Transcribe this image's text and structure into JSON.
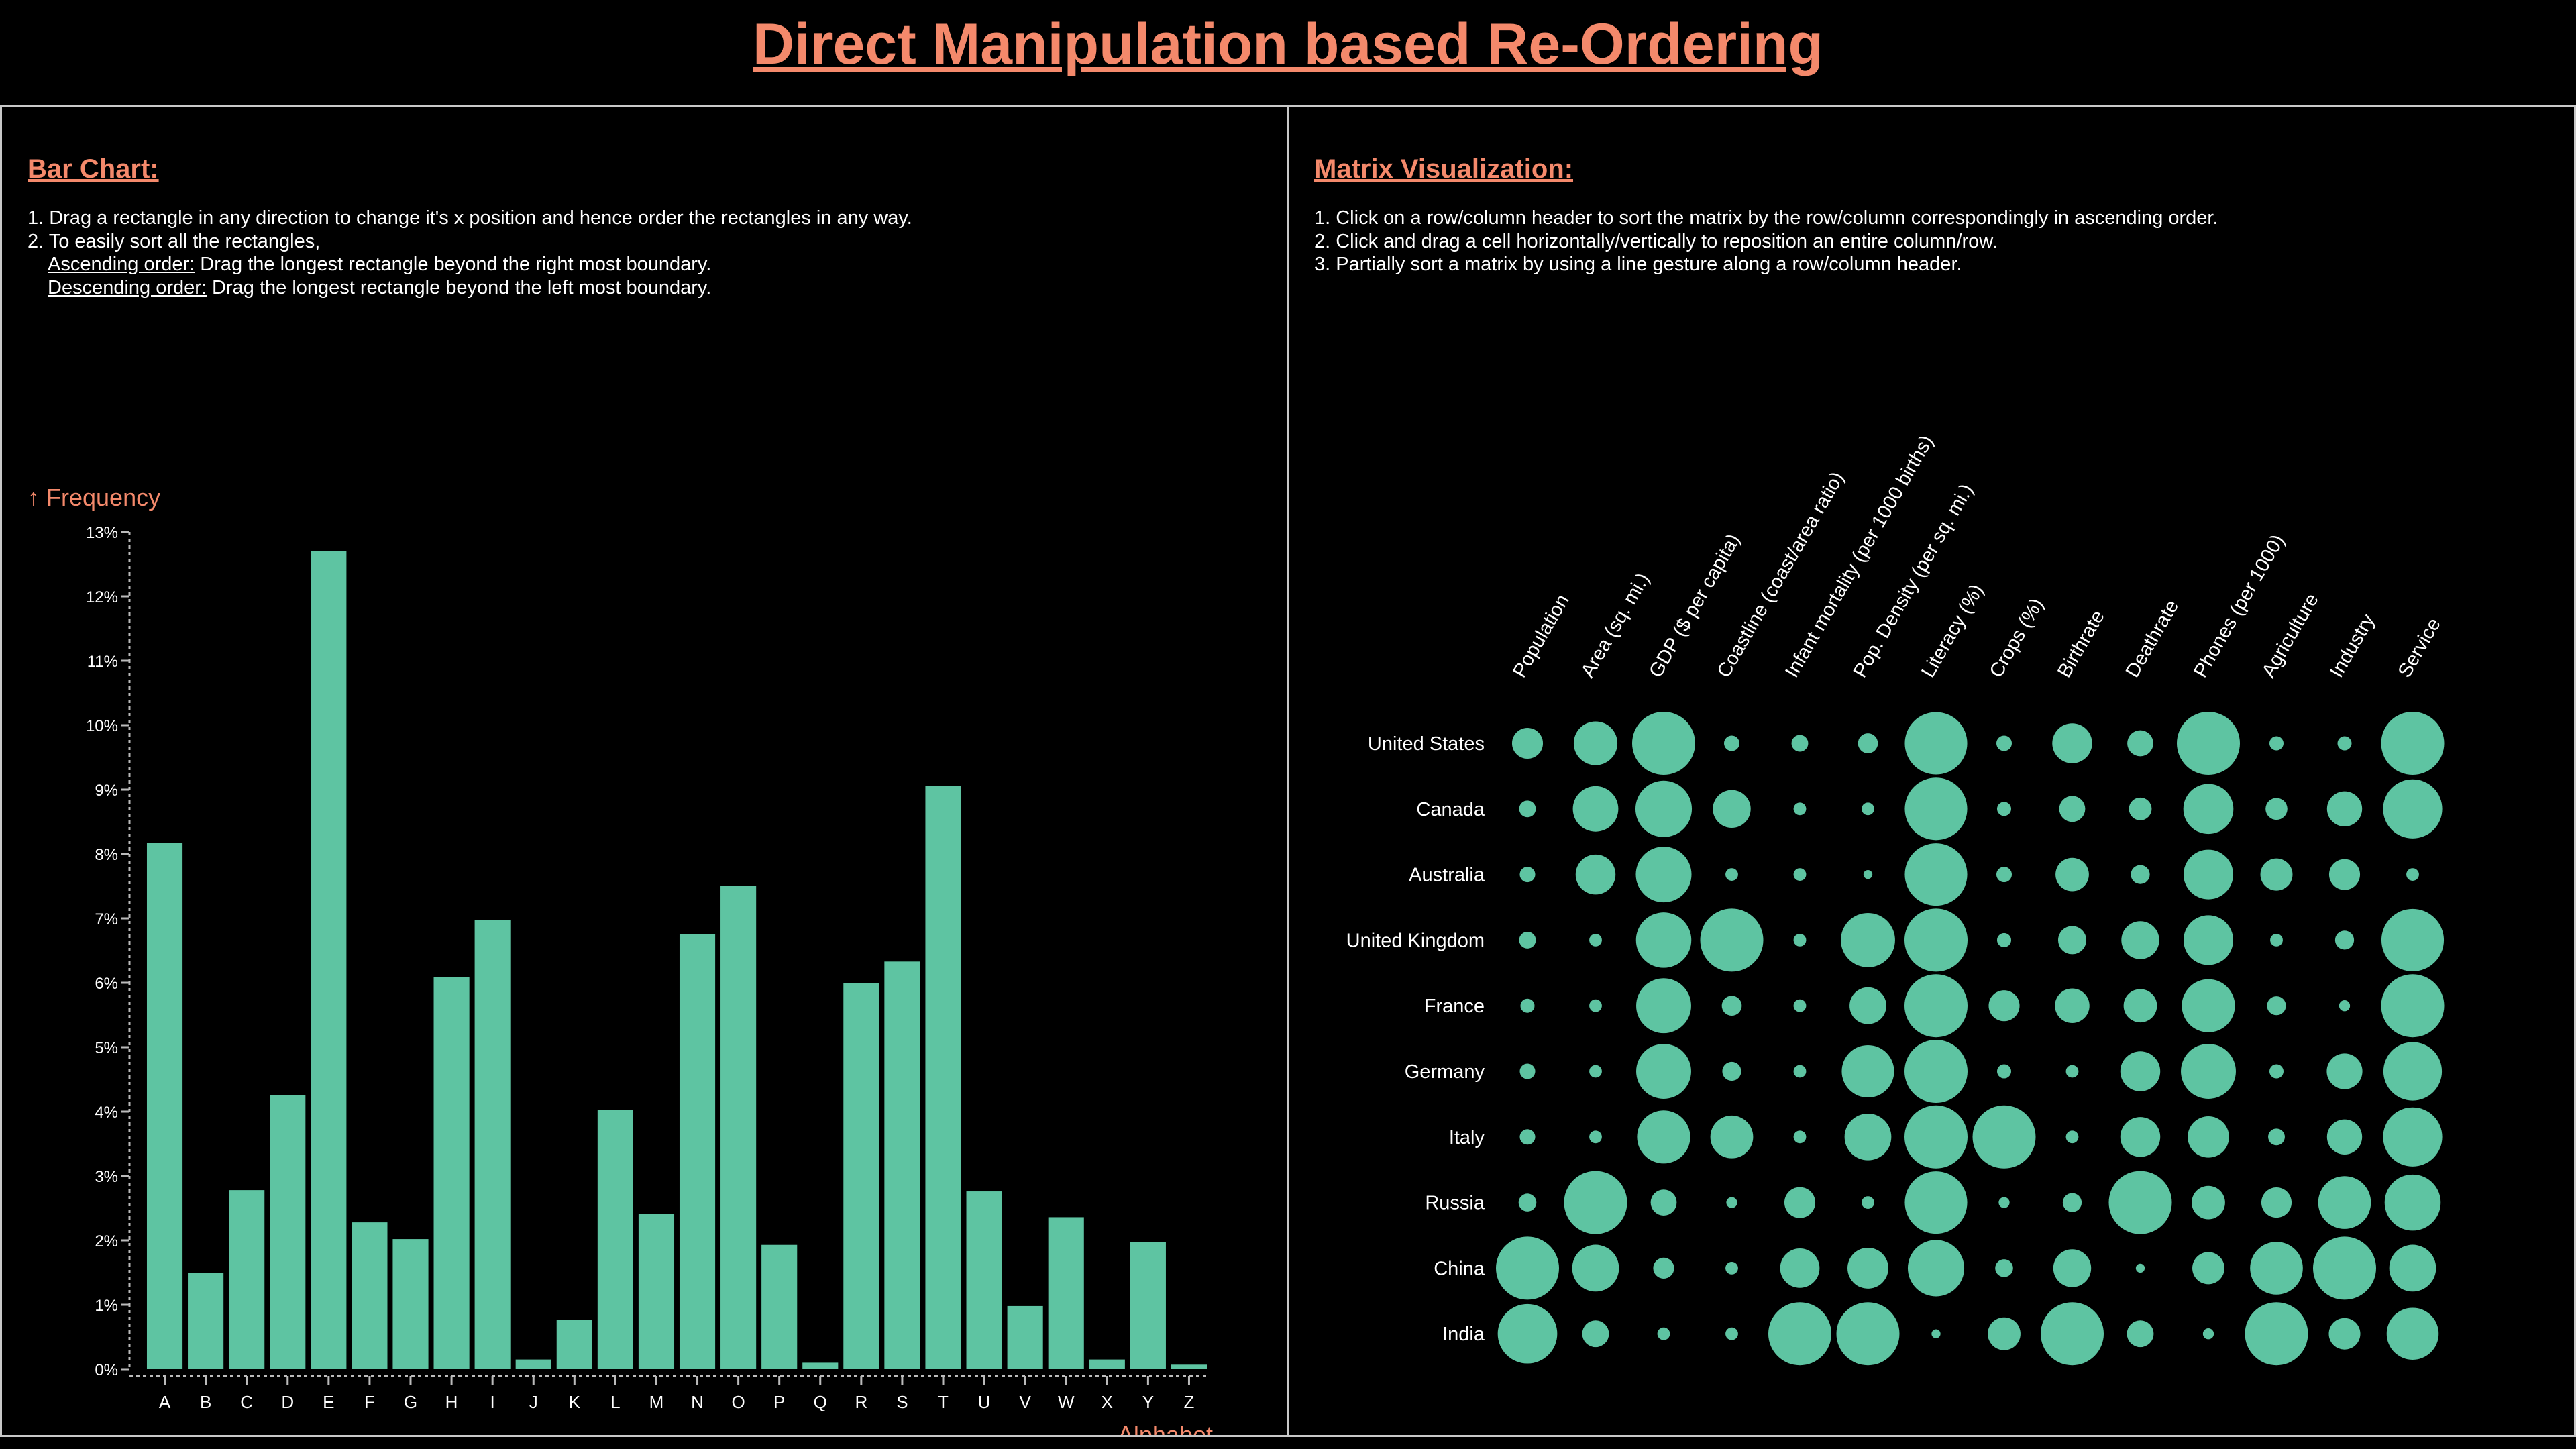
{
  "page_title": "Direct Manipulation based Re-Ordering",
  "bar_panel": {
    "heading": "Bar Chart:",
    "instructions": {
      "line1": "1. Drag a rectangle in any direction to change it's x position and hence order the rectangles in any way.",
      "line2": "2. To easily sort all the rectangles,",
      "asc_label": "Ascending order:",
      "asc_text": " Drag the longest rectangle beyond the right most boundary.",
      "desc_label": "Descending order:",
      "desc_text": " Drag the longest rectangle beyond the left most boundary."
    }
  },
  "matrix_panel": {
    "heading": "Matrix Visualization:",
    "instructions": {
      "line1": "1. Click on a row/column header to sort the matrix by the row/column correspondingly in ascending order.",
      "line2": "2. Click and drag a cell horizontally/vertically to reposition an entire column/row.",
      "line3": "3. Partially sort a matrix by using a line gesture along a row/column header."
    }
  },
  "colors": {
    "bar": "#5ec4a2",
    "accent": "#f4896b",
    "border": "#c8c8c8",
    "background": "#000000"
  },
  "chart_data": [
    {
      "type": "bar",
      "ylabel": "↑ Frequency",
      "xlabel": "Alphabet",
      "ylim": [
        0,
        0.13
      ],
      "y_ticks": [
        "0%",
        "1%",
        "2%",
        "3%",
        "4%",
        "5%",
        "6%",
        "7%",
        "8%",
        "9%",
        "10%",
        "11%",
        "12%",
        "13%"
      ],
      "categories": [
        "A",
        "B",
        "C",
        "D",
        "E",
        "F",
        "G",
        "H",
        "I",
        "J",
        "K",
        "L",
        "M",
        "N",
        "O",
        "P",
        "Q",
        "R",
        "S",
        "T",
        "U",
        "V",
        "W",
        "X",
        "Y",
        "Z"
      ],
      "values": [
        0.0817,
        0.0149,
        0.0278,
        0.0425,
        0.127,
        0.0228,
        0.0202,
        0.0609,
        0.0697,
        0.0015,
        0.0077,
        0.0403,
        0.0241,
        0.0675,
        0.0751,
        0.0193,
        0.001,
        0.0599,
        0.0633,
        0.0906,
        0.0276,
        0.0098,
        0.0236,
        0.0015,
        0.0197,
        0.0007
      ],
      "grid": false
    },
    {
      "type": "scatter",
      "columns": [
        "Population",
        "Area (sq. mi.)",
        "GDP ($ per capita)",
        "Coastline (coast/area ratio)",
        "Infant mortality (per 1000 births)",
        "Pop. Density (per sq. mi.)",
        "Literacy (%)",
        "Crops (%)",
        "Birthrate",
        "Deathrate",
        "Phones (per 1000)",
        "Agriculture",
        "Industry",
        "Service"
      ],
      "rows": [
        "United States",
        "Canada",
        "Australia",
        "United Kingdom",
        "France",
        "Germany",
        "Italy",
        "Russia",
        "China",
        "India"
      ],
      "values": [
        [
          0.24,
          0.48,
          1.0,
          0.06,
          0.07,
          0.1,
          0.98,
          0.06,
          0.4,
          0.17,
          1.0,
          0.05,
          0.05,
          1.0
        ],
        [
          0.07,
          0.52,
          0.8,
          0.36,
          0.04,
          0.04,
          0.98,
          0.05,
          0.17,
          0.13,
          0.63,
          0.12,
          0.31,
          0.88
        ],
        [
          0.06,
          0.4,
          0.78,
          0.04,
          0.04,
          0.02,
          0.98,
          0.06,
          0.28,
          0.09,
          0.62,
          0.26,
          0.24,
          0.04
        ],
        [
          0.07,
          0.04,
          0.77,
          1.0,
          0.04,
          0.74,
          1.0,
          0.05,
          0.2,
          0.36,
          0.62,
          0.04,
          0.09,
          0.98
        ],
        [
          0.05,
          0.04,
          0.76,
          0.1,
          0.04,
          0.34,
          1.0,
          0.24,
          0.3,
          0.28,
          0.71,
          0.09,
          0.03,
          1.0
        ],
        [
          0.06,
          0.04,
          0.76,
          0.09,
          0.04,
          0.69,
          1.0,
          0.05,
          0.04,
          0.4,
          0.76,
          0.05,
          0.32,
          0.86
        ],
        [
          0.06,
          0.04,
          0.71,
          0.46,
          0.04,
          0.55,
          1.0,
          1.0,
          0.04,
          0.4,
          0.43,
          0.07,
          0.31,
          0.88
        ],
        [
          0.08,
          1.0,
          0.17,
          0.03,
          0.24,
          0.04,
          0.98,
          0.03,
          0.09,
          1.0,
          0.28,
          0.23,
          0.7,
          0.79
        ],
        [
          1.0,
          0.55,
          0.11,
          0.04,
          0.39,
          0.42,
          0.8,
          0.08,
          0.36,
          0.02,
          0.26,
          0.7,
          1.0,
          0.55
        ],
        [
          0.89,
          0.18,
          0.04,
          0.04,
          1.0,
          1.0,
          0.02,
          0.27,
          1.0,
          0.18,
          0.03,
          1.0,
          0.25,
          0.68
        ]
      ]
    }
  ]
}
